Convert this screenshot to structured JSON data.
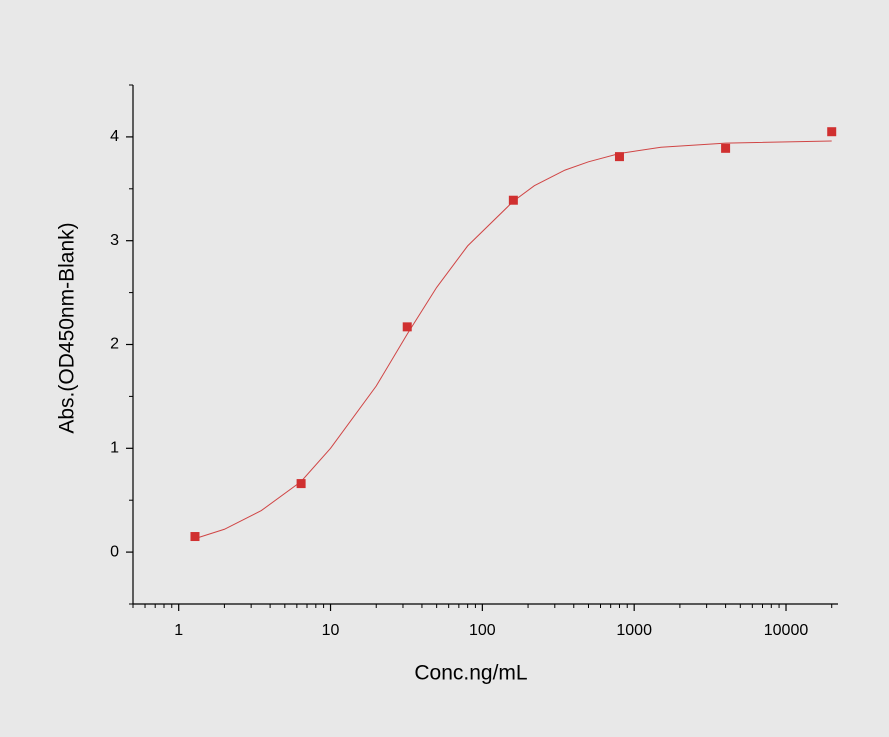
{
  "chart_data": {
    "type": "scatter",
    "xlabel": "Conc.ng/mL",
    "ylabel": "Abs.(OD450nm-Blank)",
    "xscale": "log",
    "xlim": [
      0.5,
      22000
    ],
    "ylim": [
      -0.5,
      4.5
    ],
    "xticks": [
      1,
      10,
      100,
      1000,
      10000
    ],
    "yticks": [
      0,
      1,
      2,
      3,
      4
    ],
    "xminorticks": [
      0.5,
      0.6,
      0.7,
      0.8,
      0.9,
      2,
      3,
      4,
      5,
      6,
      7,
      8,
      9,
      20,
      30,
      40,
      50,
      60,
      70,
      80,
      90,
      200,
      300,
      400,
      500,
      600,
      700,
      800,
      900,
      2000,
      3000,
      4000,
      5000,
      6000,
      7000,
      8000,
      9000,
      20000
    ],
    "yminorticks": [
      -0.5,
      0.5,
      1.5,
      2.5,
      3.5,
      4.5
    ],
    "series": [
      {
        "kind": "points",
        "color": "#d03030",
        "x": [
          1.28,
          6.4,
          32,
          160,
          800,
          4000,
          20000
        ],
        "values": [
          0.15,
          0.66,
          2.17,
          3.39,
          3.81,
          3.89,
          4.05
        ]
      },
      {
        "kind": "line",
        "color": "#d04545",
        "x": [
          1.28,
          2,
          3.5,
          6.4,
          10,
          20,
          32,
          50,
          80,
          160,
          220,
          350,
          500,
          800,
          1500,
          4000,
          20000
        ],
        "values": [
          0.13,
          0.22,
          0.4,
          0.68,
          1.0,
          1.6,
          2.1,
          2.55,
          2.95,
          3.38,
          3.53,
          3.68,
          3.76,
          3.84,
          3.9,
          3.94,
          3.96
        ]
      }
    ]
  }
}
